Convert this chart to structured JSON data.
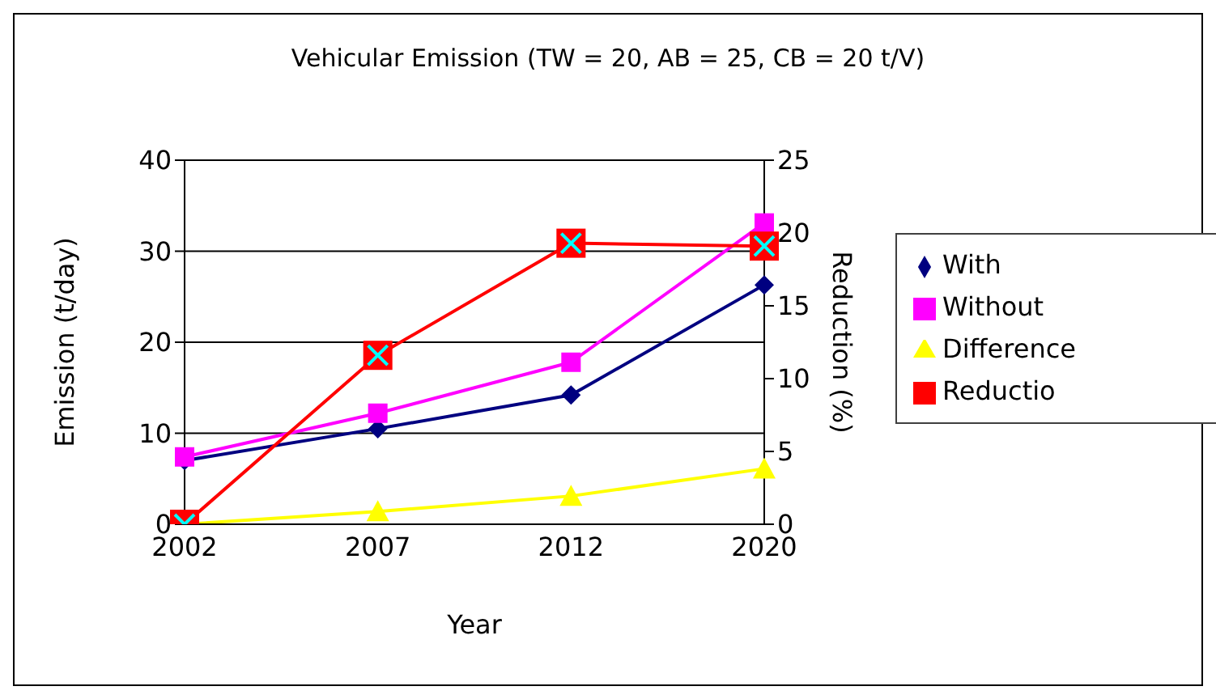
{
  "chart_data": {
    "type": "line",
    "title": "Vehicular Emission (TW = 20, AB = 25, CB = 20 t/V)",
    "xlabel": "Year",
    "ylabel": "Emission (t/day)",
    "y2label": "Reduction (%)",
    "categories": [
      "2002",
      "2007",
      "2012",
      "2020"
    ],
    "series": [
      {
        "name": "With",
        "color": "#000080",
        "marker": "diamond",
        "values": [
          7.0,
          10.5,
          14.2,
          26.3
        ]
      },
      {
        "name": "Without",
        "color": "#ff00ff",
        "marker": "square",
        "values": [
          7.4,
          12.2,
          17.8,
          33.1
        ]
      },
      {
        "name": "Difference",
        "color": "#ffff00",
        "marker": "triangle",
        "values": [
          0,
          1.4,
          3.1,
          6.1
        ]
      },
      {
        "name": "Reductio",
        "color": "#ff0000",
        "marker": "square",
        "axis": "y2",
        "values": [
          0,
          11.6,
          19.3,
          19.1
        ]
      }
    ],
    "ylim": [
      0,
      40
    ],
    "yticks": [
      0,
      10,
      20,
      30,
      40
    ],
    "y2lim": [
      0,
      25
    ],
    "y2ticks": [
      0,
      5,
      10,
      15,
      20,
      25
    ],
    "grid": "y",
    "legend": "right"
  }
}
